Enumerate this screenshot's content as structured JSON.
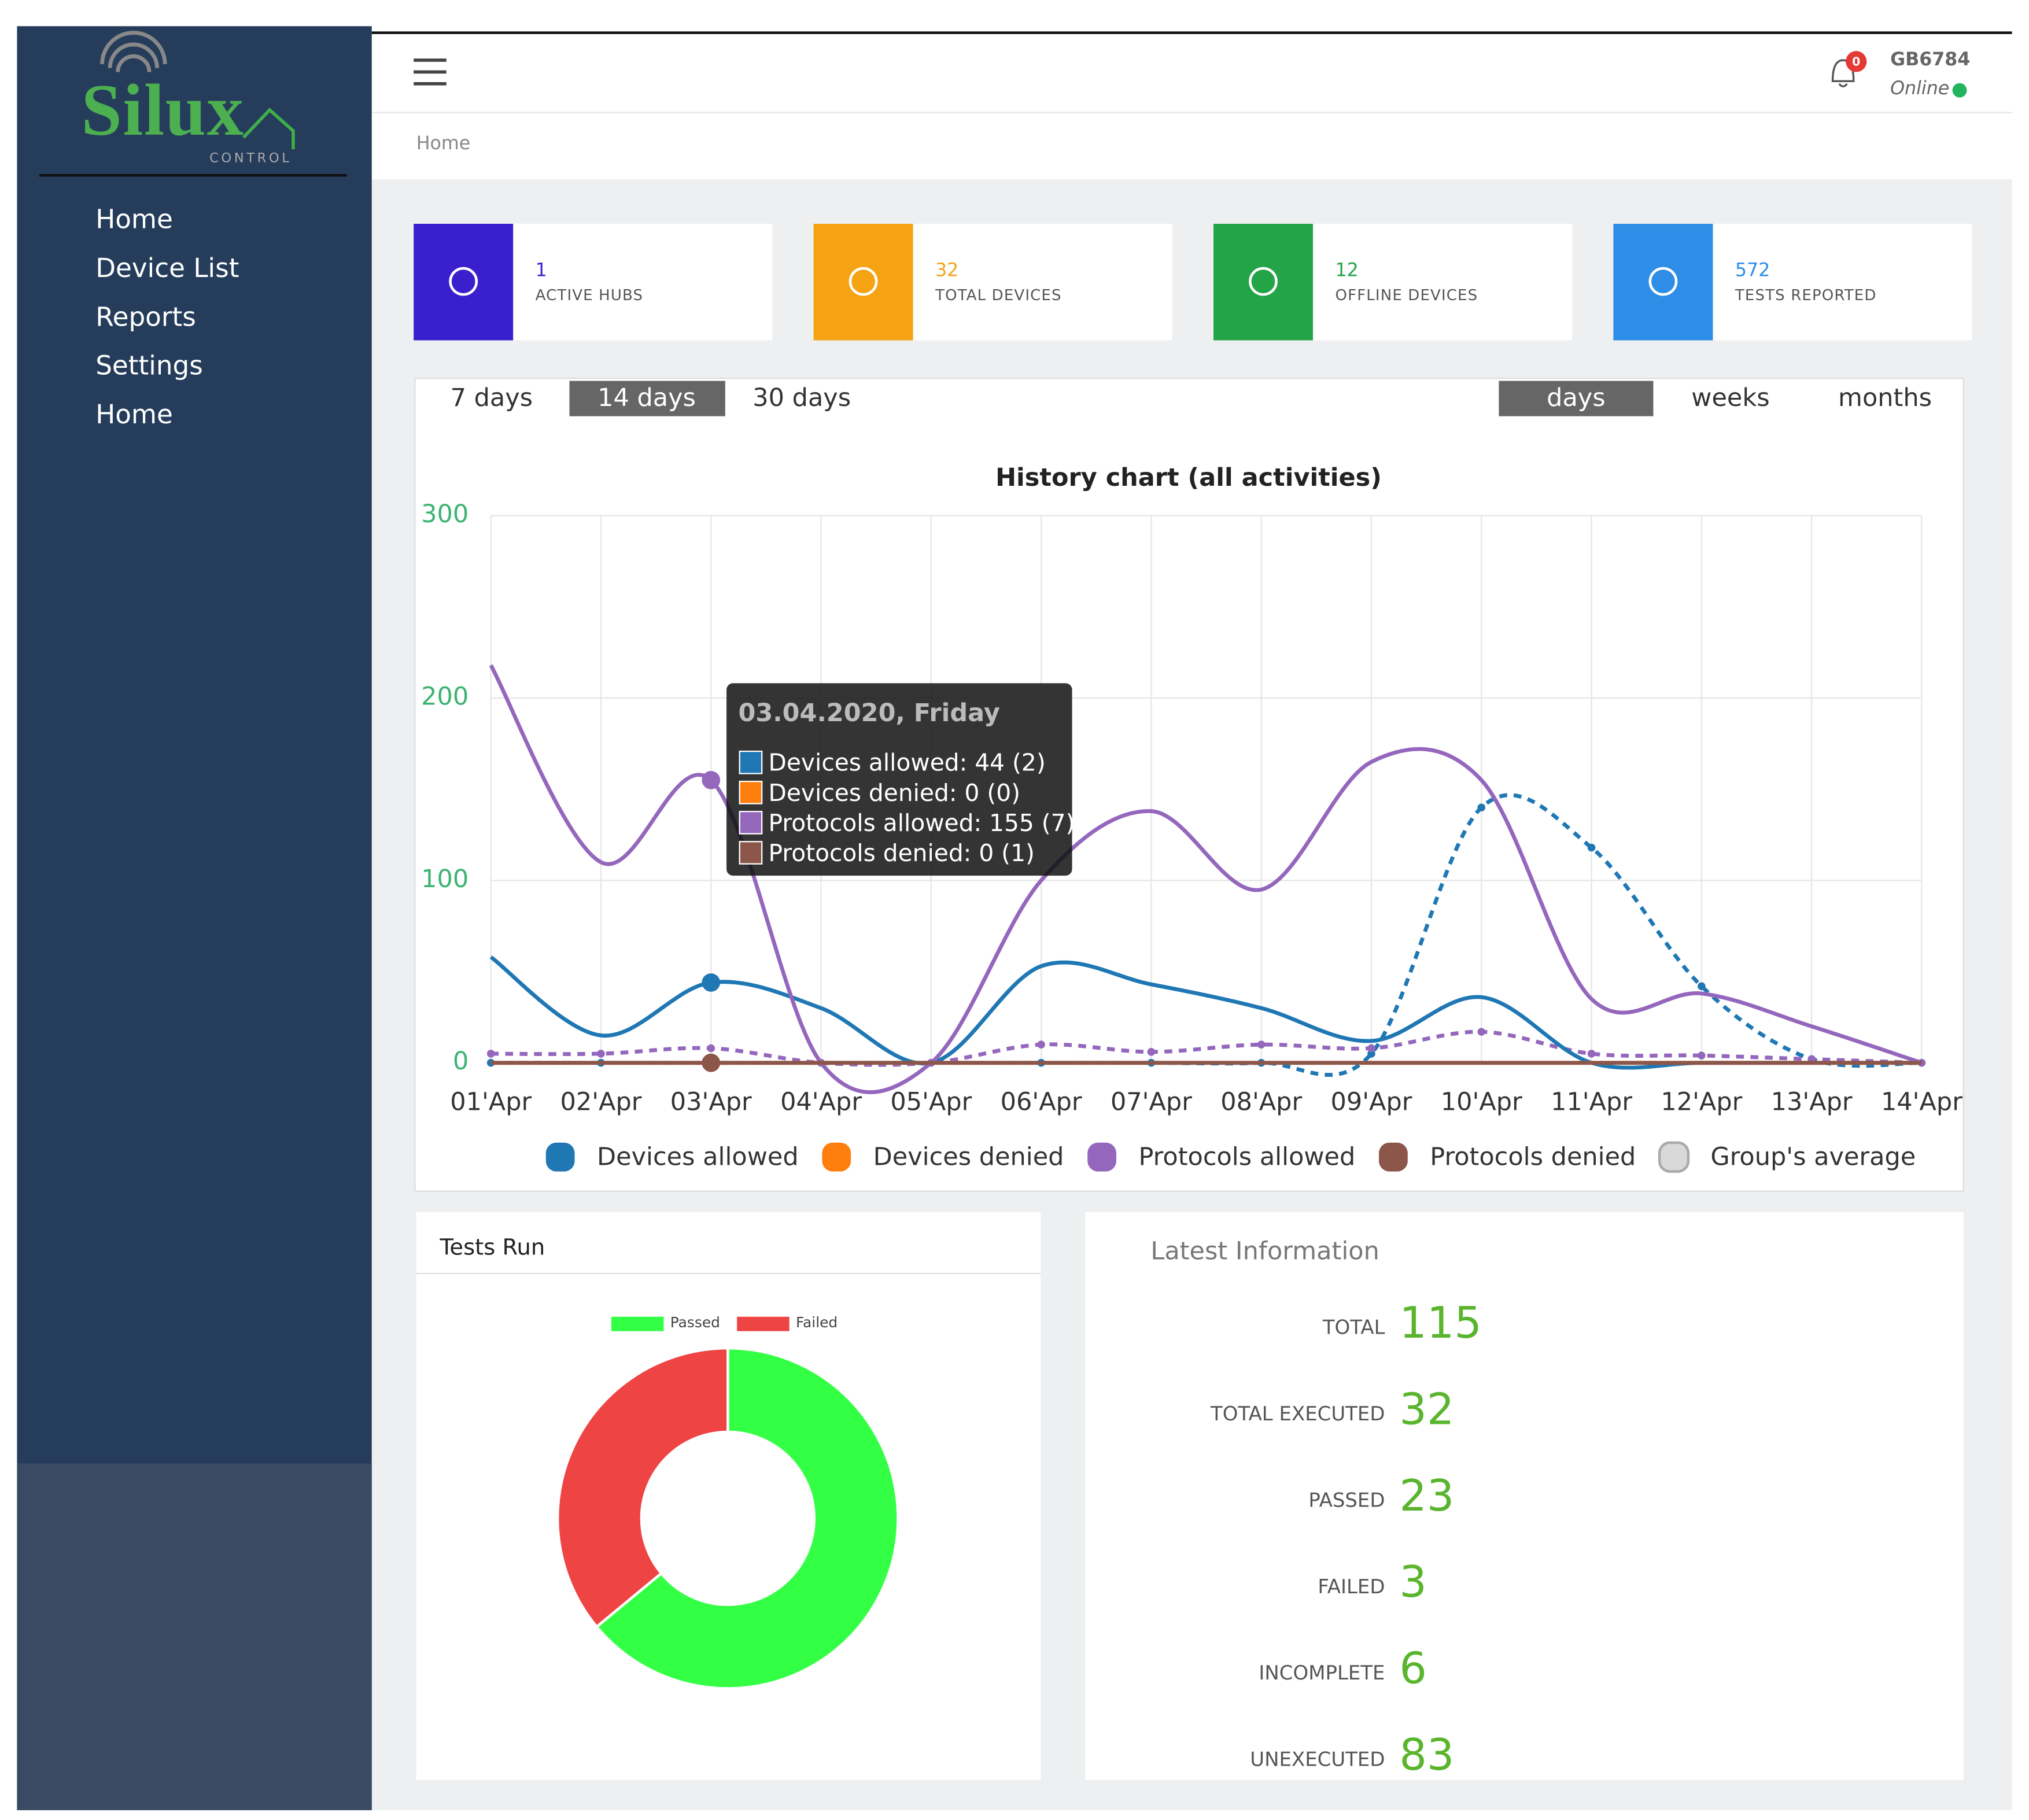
{
  "sidebar": {
    "logo": "Silux",
    "logo_sub": "CONTROL",
    "menu": [
      "Home",
      "Device List",
      "Reports",
      "Settings",
      "Home"
    ]
  },
  "header": {
    "notifications": "0",
    "user": "GB6784",
    "status": "Online"
  },
  "breadcrumb": "Home",
  "stats": [
    {
      "value": 1,
      "label": "ACTIVE HUBS",
      "color": "#3a1fcf"
    },
    {
      "value": 32,
      "label": "TOTAL DEVICES",
      "color": "#f5a312"
    },
    {
      "value": 12,
      "label": "OFFLINE DEVICES",
      "color": "#22a447"
    },
    {
      "value": 572,
      "label": "TESTS REPORTED",
      "color": "#2e8de6"
    }
  ],
  "range_buttons": [
    "7 days",
    "14 days",
    "30 days"
  ],
  "range_active": 1,
  "unit_buttons": [
    "days",
    "weeks",
    "months"
  ],
  "unit_active": 0,
  "chart_data": [
    {
      "type": "line",
      "title": "History chart (all activities)",
      "categories": [
        "01'Apr",
        "02'Apr",
        "03'Apr",
        "04'Apr",
        "05'Apr",
        "06'Apr",
        "07'Apr",
        "08'Apr",
        "09'Apr",
        "10'Apr",
        "11'Apr",
        "12'Apr",
        "13'Apr",
        "14'Apr"
      ],
      "ylim": [
        0,
        300
      ],
      "yticks": [
        0,
        100,
        200,
        300
      ],
      "grid": true,
      "series": [
        {
          "name": "Devices allowed",
          "color": "#1f77b4",
          "values": [
            58,
            15,
            44,
            30,
            0,
            53,
            43,
            30,
            12,
            36,
            0,
            0,
            0,
            0
          ],
          "average": [
            0,
            0,
            0,
            0,
            0,
            0,
            0,
            0,
            5,
            140,
            118,
            42,
            2,
            0
          ]
        },
        {
          "name": "Devices denied",
          "color": "#ff7f0e",
          "values": [
            0,
            0,
            0,
            0,
            0,
            0,
            0,
            0,
            0,
            0,
            0,
            0,
            0,
            0
          ]
        },
        {
          "name": "Protocols allowed",
          "color": "#9467bd",
          "values": [
            218,
            110,
            155,
            0,
            0,
            100,
            138,
            95,
            165,
            155,
            35,
            38,
            20,
            0
          ],
          "average": [
            5,
            5,
            8,
            0,
            0,
            10,
            6,
            10,
            8,
            17,
            5,
            4,
            2,
            0
          ]
        },
        {
          "name": "Protocols denied",
          "color": "#8c564b",
          "values": [
            0,
            0,
            0,
            0,
            0,
            0,
            0,
            0,
            0,
            0,
            0,
            0,
            0,
            0
          ]
        },
        {
          "name": "Group's average",
          "color": "#d9d9d9",
          "hidden": true
        }
      ],
      "active_index": 2,
      "tooltip": {
        "title": "03.04.2020, Friday",
        "lines": [
          "Devices allowed: 44 (2)",
          "Devices denied: 0 (0)",
          "Protocols allowed: 155 (7)",
          "Protocols denied: 0 (1)"
        ]
      }
    },
    {
      "type": "doughnut",
      "title": "Tests Run",
      "categories": [
        "Passed",
        "Failed"
      ],
      "values": [
        64,
        36
      ],
      "colors": [
        "#33ff44",
        "#ef4444"
      ]
    }
  ],
  "latest": {
    "title": "Latest Information",
    "items": [
      {
        "label": "TOTAL",
        "value": 115
      },
      {
        "label": "TOTAL EXECUTED",
        "value": 32
      },
      {
        "label": "PASSED",
        "value": 23
      },
      {
        "label": "FAILED",
        "value": 3
      },
      {
        "label": "INCOMPLETE",
        "value": 6
      },
      {
        "label": "UNEXECUTED",
        "value": 83
      }
    ]
  }
}
